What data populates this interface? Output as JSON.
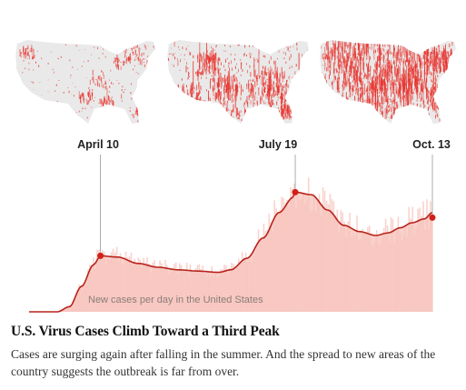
{
  "colors": {
    "map_base": "#e9e9e9",
    "map_hot": "#e8312b",
    "bar_fill": "#f7c2ba",
    "line": "#b7231b",
    "marker": "#d11f19",
    "guide": "#999999"
  },
  "maps": [
    {
      "date": "April 10",
      "intensity": 0.15
    },
    {
      "date": "July 19",
      "intensity": 0.55
    },
    {
      "date": "Oct. 13",
      "intensity": 0.85
    }
  ],
  "chart_data": {
    "type": "area",
    "series_label": "New cases per day in the United States",
    "annotations": [
      "April 10",
      "July 19",
      "Oct. 13"
    ],
    "peaks": [
      {
        "date": "April 10",
        "relative_value": 0.44
      },
      {
        "date": "July 19",
        "relative_value": 0.94
      },
      {
        "date": "Oct. 13",
        "relative_value": 0.74
      }
    ],
    "x_range": [
      "Mar. 1",
      "Oct. 13"
    ],
    "grid": false,
    "legend": "none"
  },
  "headline": "U.S. Virus Cases Climb Toward a Third Peak",
  "dek": "Cases are surging again after falling in the summer. And the spread to new areas of the country suggests the outbreak is far from over."
}
